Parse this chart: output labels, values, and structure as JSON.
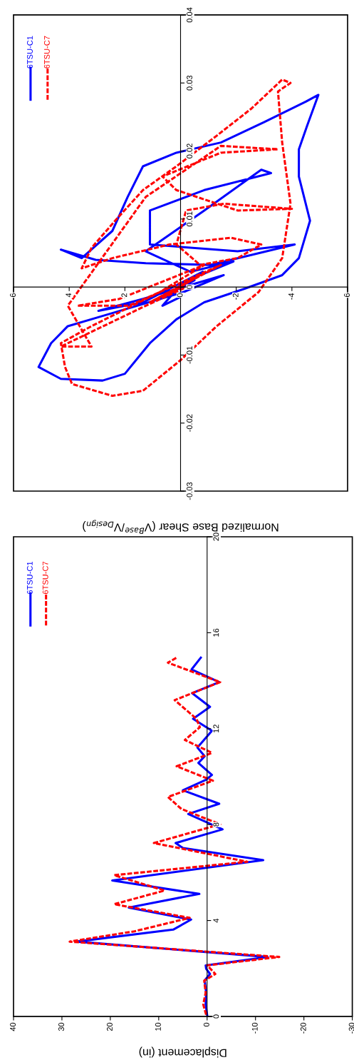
{
  "chart_data": [
    {
      "type": "line",
      "xlabel": "Normalized Base Shear (V$^{Base}$/V$_{Design}$)",
      "legend": "top left",
      "grid": false,
      "marker": "none",
      "xlim": [
        6,
        -6
      ],
      "xticks": [
        6,
        4,
        2,
        0,
        -2,
        -4,
        {
          "value": -6,
          "label": "6"
        }
      ],
      "ylim": [
        -0.03,
        0.04
      ],
      "yticks": [
        -0.03,
        -0.02,
        -0.01,
        0,
        0.01,
        0.02,
        0.03,
        0.04
      ],
      "series": [
        {
          "name": "6TSU-C1",
          "color": "#0000ff",
          "line_style": "solid",
          "x": [
            0.0,
            0.4,
            -0.5,
            0.75,
            -0.8,
            1.35,
            2.95,
            1.35,
            -1.55,
            -0.1,
            2.8,
            4.05,
            4.65,
            5.1,
            4.3,
            2.8,
            2.0,
            1.1,
            0.15,
            -0.85,
            -2.3,
            -3.65,
            -4.25,
            -4.65,
            -4.25,
            -4.25,
            -4.55,
            -4.95,
            -4.5,
            -3.0,
            -1.45,
            0.15,
            1.35,
            1.9,
            2.45,
            3.55,
            4.3,
            3.05,
            1.25,
            -1.05,
            -4.1,
            -2.05,
            1.1,
            1.1,
            -0.85,
            -3.25,
            -2.9,
            -0.85,
            1.25,
            -0.35,
            -1.9,
            -0.1,
            0.65,
            -0.1
          ],
          "values": [
            0.0,
            -0.001,
            0.001,
            -0.00175,
            0.00225,
            -0.00225,
            -0.0035,
            -0.00175,
            0.00175,
            -0.00075,
            -0.00425,
            -0.00575,
            -0.00825,
            -0.01175,
            -0.0135,
            -0.01375,
            -0.01275,
            -0.00825,
            -0.00475,
            -0.00225,
            -0.00025,
            0.00175,
            0.00425,
            0.00975,
            0.01625,
            0.02025,
            0.02375,
            0.02825,
            0.02725,
            0.02425,
            0.02125,
            0.01975,
            0.01775,
            0.01325,
            0.00825,
            0.00425,
            0.0055,
            0.004,
            0.0035,
            0.00325,
            0.00625,
            0.00525,
            0.00625,
            0.01125,
            0.01425,
            0.01675,
            0.01725,
            0.01125,
            0.00525,
            0.00225,
            0.00375,
            0.00075,
            -0.00275,
            -0.00125
          ]
        },
        {
          "name": "6TSU-C7",
          "color": "#ff0000",
          "line_style": "dashed",
          "x": [
            0.0,
            0.5,
            -0.7,
            1.1,
            -1.45,
            1.85,
            3.7,
            2.2,
            -0.85,
            0.75,
            3.2,
            4.3,
            4.15,
            3.9,
            2.45,
            1.35,
            0.0,
            -1.3,
            -2.8,
            -3.65,
            -3.95,
            -3.65,
            -3.5,
            -3.95,
            -3.65,
            -2.55,
            -1.3,
            0.15,
            1.35,
            2.35,
            3.2,
            3.55,
            2.45,
            0.4,
            -1.8,
            -2.9,
            -2.05,
            -0.7,
            0.15,
            -0.2,
            -1.55,
            -4.0,
            -2.05,
            0.15,
            0.65,
            -1.45,
            -3.5,
            -1.45,
            1.25,
            4.05,
            3.2,
            4.3,
            1.25,
            -0.35
          ],
          "values": [
            0.0,
            -0.00125,
            0.00175,
            -0.00225,
            0.00325,
            -0.00275,
            -0.00275,
            -0.00175,
            0.00325,
            -0.00075,
            -0.00575,
            -0.00825,
            -0.01175,
            -0.01425,
            -0.016,
            -0.01525,
            -0.01075,
            -0.00575,
            -0.00075,
            0.00425,
            0.01225,
            0.02125,
            0.02875,
            0.03,
            0.0305,
            0.02625,
            0.02225,
            0.01775,
            0.01425,
            0.00975,
            0.00575,
            0.00275,
            0.00425,
            0.00625,
            0.00725,
            0.00625,
            0.00425,
            0.00325,
            0.00625,
            0.01125,
            0.01225,
            0.0115,
            0.01125,
            0.01425,
            0.01625,
            0.01975,
            0.02025,
            0.02075,
            0.01325,
            -0.00275,
            -0.00875,
            -0.00875,
            -0.00275,
            0.00025
          ]
        }
      ]
    },
    {
      "type": "line",
      "xlabel": "Displacement (in)",
      "legend": "top left",
      "grid": false,
      "marker": "none",
      "xlim": [
        40,
        -30
      ],
      "xticks": [
        40,
        30,
        20,
        10,
        0,
        -10,
        -20,
        -30
      ],
      "ylim": [
        0,
        20
      ],
      "yticks": [
        0,
        4,
        8,
        12,
        16,
        20
      ],
      "series": [
        {
          "name": "6TSU-C1",
          "color": "#0000ff",
          "line_style": "solid",
          "x": [
            0,
            0.3,
            0.2,
            0.5,
            -0.6,
            0.2,
            0.3,
            -12.5,
            27,
            7,
            3.3,
            16.2,
            1.6,
            19.6,
            -11.6,
            5,
            6.5,
            -3.2,
            3.9,
            -2.5,
            5,
            0.3,
            -1,
            1.8,
            0.5,
            2,
            -1,
            2.9,
            -0.6,
            3.1,
            -2.5,
            3.2,
            1.3
          ],
          "values": [
            0.07,
            0.5,
            1.0,
            1.5,
            1.77,
            1.99,
            2.13,
            2.48,
            3.12,
            3.62,
            4.04,
            4.54,
            5.11,
            5.67,
            6.52,
            7.02,
            7.23,
            7.8,
            8.44,
            8.87,
            9.43,
            9.86,
            10.07,
            10.57,
            10.85,
            11.21,
            11.91,
            12.41,
            12.91,
            13.48,
            13.94,
            14.47,
            14.96
          ]
        },
        {
          "name": "6TSU-C7",
          "color": "#ff0000",
          "line_style": "dashed",
          "x": [
            0.2,
            0.8,
            0.3,
            0.6,
            -1.7,
            0,
            -14.9,
            28.4,
            15,
            3.6,
            19.2,
            8.8,
            19.2,
            -8.3,
            11,
            -2.7,
            5.3,
            8.1,
            -1.2,
            6.3,
            -1,
            4.6,
            1.5,
            2.2,
            6.7,
            -2.7,
            8.1,
            6.3
          ],
          "values": [
            0.07,
            0.5,
            0.99,
            1.49,
            1.77,
            2.13,
            2.48,
            3.12,
            3.55,
            4.11,
            4.68,
            5.25,
            5.89,
            6.45,
            7.23,
            8.01,
            8.65,
            9.15,
            9.83,
            10.43,
            10.99,
            11.53,
            12.06,
            12.41,
            13.19,
            13.94,
            14.75,
            14.96
          ]
        }
      ]
    }
  ]
}
